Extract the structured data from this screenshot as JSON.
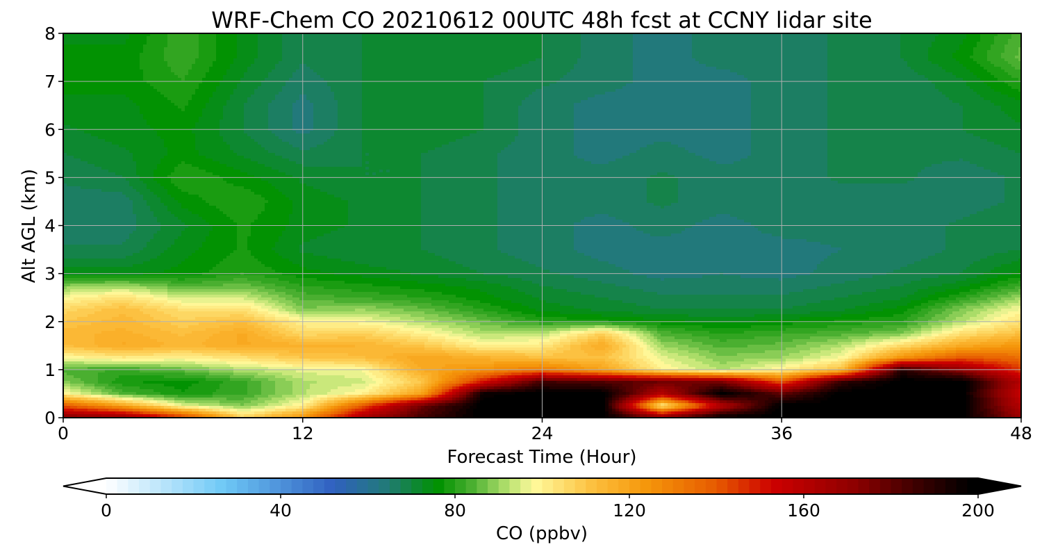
{
  "chart_data": {
    "type": "heatmap",
    "title": "WRF-Chem CO  20210612 00UTC 48h fcst at CCNY lidar site",
    "xlabel": "Forecast Time (Hour)",
    "ylabel": "Alt AGL (km)",
    "xlim": [
      0,
      48
    ],
    "ylim": [
      0,
      8
    ],
    "x_ticks": [
      0,
      12,
      24,
      36,
      48
    ],
    "y_ticks": [
      0,
      1,
      2,
      3,
      4,
      5,
      6,
      7,
      8
    ],
    "grid": true,
    "colorbar": {
      "label": "CO  (ppbv)",
      "min": 0,
      "max": 200,
      "step": 2.5,
      "ticks": [
        0,
        40,
        80,
        120,
        160,
        200
      ],
      "extend": "both",
      "colormap_stops": [
        {
          "value": 0,
          "color": "#ffffff"
        },
        {
          "value": 27,
          "color": "#6ec8f6"
        },
        {
          "value": 52,
          "color": "#3060c0"
        },
        {
          "value": 64,
          "color": "#227a7a"
        },
        {
          "value": 76,
          "color": "#009100"
        },
        {
          "value": 84,
          "color": "#4cb032"
        },
        {
          "value": 92,
          "color": "#b4e06e"
        },
        {
          "value": 98,
          "color": "#fffa9c"
        },
        {
          "value": 112,
          "color": "#fcbe3c"
        },
        {
          "value": 124,
          "color": "#f5960a"
        },
        {
          "value": 140,
          "color": "#e65a00"
        },
        {
          "value": 153,
          "color": "#cd0000"
        },
        {
          "value": 172,
          "color": "#8c0000"
        },
        {
          "value": 186,
          "color": "#3c0000"
        },
        {
          "value": 198,
          "color": "#000000"
        }
      ]
    },
    "x": [
      0,
      3,
      6,
      9,
      12,
      15,
      18,
      21,
      24,
      27,
      30,
      33,
      36,
      39,
      42,
      45,
      48
    ],
    "y": [
      0,
      0.25,
      0.5,
      0.75,
      1.0,
      1.25,
      1.5,
      1.75,
      2.0,
      2.25,
      2.5,
      2.75,
      3.0,
      3.5,
      4.0,
      4.5,
      5.0,
      5.5,
      6.0,
      6.5,
      7.0,
      7.5,
      8.0
    ],
    "z": [
      [
        175,
        172,
        148,
        108,
        125,
        165,
        185,
        200,
        200,
        200,
        175,
        200,
        200,
        200,
        200,
        200,
        168
      ],
      [
        140,
        120,
        96,
        88,
        100,
        140,
        178,
        200,
        200,
        200,
        100,
        160,
        200,
        200,
        200,
        200,
        160
      ],
      [
        100,
        84,
        78,
        82,
        92,
        100,
        120,
        196,
        200,
        200,
        160,
        200,
        180,
        200,
        200,
        200,
        155
      ],
      [
        88,
        78,
        76,
        82,
        92,
        94,
        110,
        150,
        185,
        182,
        178,
        175,
        140,
        188,
        200,
        200,
        160
      ],
      [
        84,
        82,
        86,
        92,
        96,
        98,
        118,
        125,
        132,
        120,
        100,
        92,
        100,
        112,
        190,
        170,
        145
      ],
      [
        98,
        102,
        100,
        104,
        110,
        112,
        120,
        116,
        112,
        112,
        96,
        88,
        90,
        98,
        125,
        140,
        135
      ],
      [
        112,
        118,
        114,
        118,
        116,
        115,
        110,
        100,
        102,
        118,
        90,
        84,
        86,
        92,
        105,
        118,
        124
      ],
      [
        114,
        116,
        112,
        118,
        106,
        108,
        100,
        92,
        92,
        108,
        84,
        80,
        82,
        84,
        88,
        104,
        112
      ],
      [
        110,
        114,
        108,
        112,
        100,
        98,
        92,
        86,
        80,
        78,
        76,
        74,
        76,
        78,
        80,
        92,
        104
      ],
      [
        106,
        112,
        104,
        104,
        88,
        90,
        86,
        80,
        74,
        72,
        70,
        70,
        70,
        72,
        76,
        88,
        98
      ],
      [
        98,
        104,
        94,
        94,
        84,
        82,
        80,
        76,
        72,
        70,
        68,
        68,
        68,
        70,
        72,
        80,
        90
      ],
      [
        88,
        90,
        84,
        86,
        80,
        78,
        76,
        74,
        70,
        68,
        66,
        66,
        66,
        68,
        70,
        74,
        82
      ],
      [
        74,
        74,
        76,
        80,
        76,
        74,
        72,
        70,
        68,
        66,
        64,
        65,
        64,
        66,
        68,
        70,
        76
      ],
      [
        68,
        68,
        74,
        78,
        72,
        70,
        70,
        68,
        66,
        64,
        64,
        64,
        64,
        65,
        66,
        68,
        70
      ],
      [
        66,
        66,
        72,
        78,
        74,
        72,
        70,
        68,
        66,
        64,
        66,
        64,
        66,
        66,
        66,
        68,
        70
      ],
      [
        66,
        66,
        76,
        80,
        74,
        72,
        70,
        68,
        66,
        66,
        68,
        66,
        66,
        66,
        66,
        66,
        68
      ],
      [
        68,
        70,
        80,
        76,
        72,
        70,
        70,
        68,
        66,
        66,
        68,
        66,
        66,
        68,
        68,
        66,
        68
      ],
      [
        70,
        72,
        76,
        72,
        68,
        70,
        70,
        68,
        66,
        64,
        66,
        64,
        66,
        68,
        68,
        68,
        70
      ],
      [
        72,
        74,
        76,
        70,
        64,
        70,
        72,
        70,
        66,
        64,
        64,
        64,
        66,
        68,
        68,
        70,
        72
      ],
      [
        74,
        74,
        78,
        70,
        64,
        70,
        72,
        70,
        66,
        64,
        64,
        64,
        66,
        68,
        68,
        70,
        74
      ],
      [
        76,
        76,
        80,
        72,
        66,
        70,
        72,
        70,
        68,
        66,
        64,
        64,
        66,
        68,
        68,
        72,
        80
      ],
      [
        76,
        76,
        82,
        74,
        68,
        70,
        72,
        72,
        70,
        66,
        64,
        66,
        66,
        68,
        70,
        76,
        86
      ],
      [
        74,
        74,
        82,
        74,
        68,
        70,
        72,
        72,
        70,
        66,
        64,
        66,
        66,
        68,
        70,
        74,
        84
      ]
    ]
  }
}
